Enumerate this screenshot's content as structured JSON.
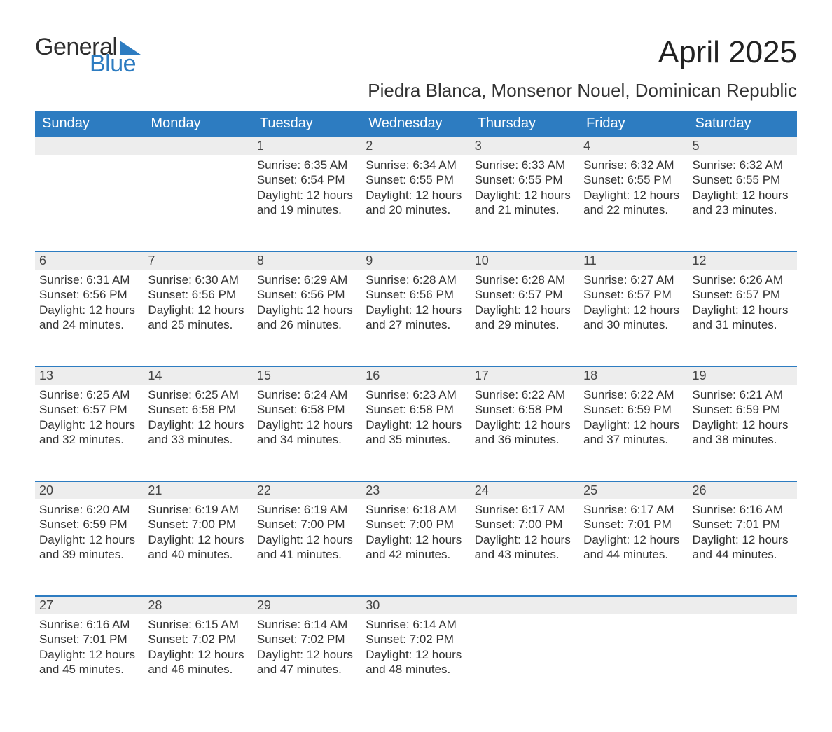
{
  "logo": {
    "word1": "General",
    "word2": "Blue",
    "word1_color": "#2e2e2e",
    "word2_color": "#2d7cc1",
    "flag_color": "#2d7cc1"
  },
  "title": "April 2025",
  "subtitle": "Piedra Blanca, Monsenor Nouel, Dominican Republic",
  "colors": {
    "header_bg": "#2d7cc1",
    "header_text": "#ffffff",
    "daynum_bg": "#ededed",
    "day_border": "#2d7cc1",
    "body_text": "#333333",
    "page_bg": "#ffffff"
  },
  "typography": {
    "title_fontsize": 44,
    "subtitle_fontsize": 26,
    "header_fontsize": 20,
    "daynum_fontsize": 18,
    "cell_fontsize": 17,
    "font_family": "Arial"
  },
  "weekdays": [
    "Sunday",
    "Monday",
    "Tuesday",
    "Wednesday",
    "Thursday",
    "Friday",
    "Saturday"
  ],
  "weeks": [
    [
      null,
      null,
      {
        "day": "1",
        "sunrise": "Sunrise: 6:35 AM",
        "sunset": "Sunset: 6:54 PM",
        "daylight1": "Daylight: 12 hours",
        "daylight2": "and 19 minutes."
      },
      {
        "day": "2",
        "sunrise": "Sunrise: 6:34 AM",
        "sunset": "Sunset: 6:55 PM",
        "daylight1": "Daylight: 12 hours",
        "daylight2": "and 20 minutes."
      },
      {
        "day": "3",
        "sunrise": "Sunrise: 6:33 AM",
        "sunset": "Sunset: 6:55 PM",
        "daylight1": "Daylight: 12 hours",
        "daylight2": "and 21 minutes."
      },
      {
        "day": "4",
        "sunrise": "Sunrise: 6:32 AM",
        "sunset": "Sunset: 6:55 PM",
        "daylight1": "Daylight: 12 hours",
        "daylight2": "and 22 minutes."
      },
      {
        "day": "5",
        "sunrise": "Sunrise: 6:32 AM",
        "sunset": "Sunset: 6:55 PM",
        "daylight1": "Daylight: 12 hours",
        "daylight2": "and 23 minutes."
      }
    ],
    [
      {
        "day": "6",
        "sunrise": "Sunrise: 6:31 AM",
        "sunset": "Sunset: 6:56 PM",
        "daylight1": "Daylight: 12 hours",
        "daylight2": "and 24 minutes."
      },
      {
        "day": "7",
        "sunrise": "Sunrise: 6:30 AM",
        "sunset": "Sunset: 6:56 PM",
        "daylight1": "Daylight: 12 hours",
        "daylight2": "and 25 minutes."
      },
      {
        "day": "8",
        "sunrise": "Sunrise: 6:29 AM",
        "sunset": "Sunset: 6:56 PM",
        "daylight1": "Daylight: 12 hours",
        "daylight2": "and 26 minutes."
      },
      {
        "day": "9",
        "sunrise": "Sunrise: 6:28 AM",
        "sunset": "Sunset: 6:56 PM",
        "daylight1": "Daylight: 12 hours",
        "daylight2": "and 27 minutes."
      },
      {
        "day": "10",
        "sunrise": "Sunrise: 6:28 AM",
        "sunset": "Sunset: 6:57 PM",
        "daylight1": "Daylight: 12 hours",
        "daylight2": "and 29 minutes."
      },
      {
        "day": "11",
        "sunrise": "Sunrise: 6:27 AM",
        "sunset": "Sunset: 6:57 PM",
        "daylight1": "Daylight: 12 hours",
        "daylight2": "and 30 minutes."
      },
      {
        "day": "12",
        "sunrise": "Sunrise: 6:26 AM",
        "sunset": "Sunset: 6:57 PM",
        "daylight1": "Daylight: 12 hours",
        "daylight2": "and 31 minutes."
      }
    ],
    [
      {
        "day": "13",
        "sunrise": "Sunrise: 6:25 AM",
        "sunset": "Sunset: 6:57 PM",
        "daylight1": "Daylight: 12 hours",
        "daylight2": "and 32 minutes."
      },
      {
        "day": "14",
        "sunrise": "Sunrise: 6:25 AM",
        "sunset": "Sunset: 6:58 PM",
        "daylight1": "Daylight: 12 hours",
        "daylight2": "and 33 minutes."
      },
      {
        "day": "15",
        "sunrise": "Sunrise: 6:24 AM",
        "sunset": "Sunset: 6:58 PM",
        "daylight1": "Daylight: 12 hours",
        "daylight2": "and 34 minutes."
      },
      {
        "day": "16",
        "sunrise": "Sunrise: 6:23 AM",
        "sunset": "Sunset: 6:58 PM",
        "daylight1": "Daylight: 12 hours",
        "daylight2": "and 35 minutes."
      },
      {
        "day": "17",
        "sunrise": "Sunrise: 6:22 AM",
        "sunset": "Sunset: 6:58 PM",
        "daylight1": "Daylight: 12 hours",
        "daylight2": "and 36 minutes."
      },
      {
        "day": "18",
        "sunrise": "Sunrise: 6:22 AM",
        "sunset": "Sunset: 6:59 PM",
        "daylight1": "Daylight: 12 hours",
        "daylight2": "and 37 minutes."
      },
      {
        "day": "19",
        "sunrise": "Sunrise: 6:21 AM",
        "sunset": "Sunset: 6:59 PM",
        "daylight1": "Daylight: 12 hours",
        "daylight2": "and 38 minutes."
      }
    ],
    [
      {
        "day": "20",
        "sunrise": "Sunrise: 6:20 AM",
        "sunset": "Sunset: 6:59 PM",
        "daylight1": "Daylight: 12 hours",
        "daylight2": "and 39 minutes."
      },
      {
        "day": "21",
        "sunrise": "Sunrise: 6:19 AM",
        "sunset": "Sunset: 7:00 PM",
        "daylight1": "Daylight: 12 hours",
        "daylight2": "and 40 minutes."
      },
      {
        "day": "22",
        "sunrise": "Sunrise: 6:19 AM",
        "sunset": "Sunset: 7:00 PM",
        "daylight1": "Daylight: 12 hours",
        "daylight2": "and 41 minutes."
      },
      {
        "day": "23",
        "sunrise": "Sunrise: 6:18 AM",
        "sunset": "Sunset: 7:00 PM",
        "daylight1": "Daylight: 12 hours",
        "daylight2": "and 42 minutes."
      },
      {
        "day": "24",
        "sunrise": "Sunrise: 6:17 AM",
        "sunset": "Sunset: 7:00 PM",
        "daylight1": "Daylight: 12 hours",
        "daylight2": "and 43 minutes."
      },
      {
        "day": "25",
        "sunrise": "Sunrise: 6:17 AM",
        "sunset": "Sunset: 7:01 PM",
        "daylight1": "Daylight: 12 hours",
        "daylight2": "and 44 minutes."
      },
      {
        "day": "26",
        "sunrise": "Sunrise: 6:16 AM",
        "sunset": "Sunset: 7:01 PM",
        "daylight1": "Daylight: 12 hours",
        "daylight2": "and 44 minutes."
      }
    ],
    [
      {
        "day": "27",
        "sunrise": "Sunrise: 6:16 AM",
        "sunset": "Sunset: 7:01 PM",
        "daylight1": "Daylight: 12 hours",
        "daylight2": "and 45 minutes."
      },
      {
        "day": "28",
        "sunrise": "Sunrise: 6:15 AM",
        "sunset": "Sunset: 7:02 PM",
        "daylight1": "Daylight: 12 hours",
        "daylight2": "and 46 minutes."
      },
      {
        "day": "29",
        "sunrise": "Sunrise: 6:14 AM",
        "sunset": "Sunset: 7:02 PM",
        "daylight1": "Daylight: 12 hours",
        "daylight2": "and 47 minutes."
      },
      {
        "day": "30",
        "sunrise": "Sunrise: 6:14 AM",
        "sunset": "Sunset: 7:02 PM",
        "daylight1": "Daylight: 12 hours",
        "daylight2": "and 48 minutes."
      },
      null,
      null,
      null
    ]
  ]
}
